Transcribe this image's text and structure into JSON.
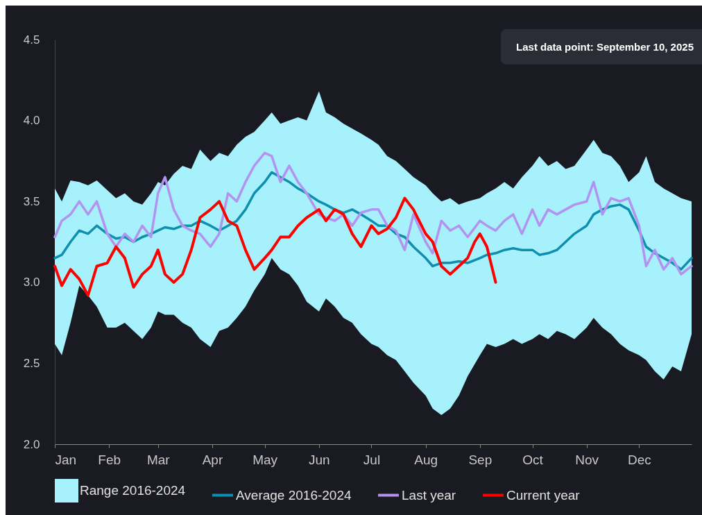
{
  "chart_data": {
    "type": "line",
    "annotations": [
      "Last data point: September 10, 2025"
    ],
    "x": [
      "--01-01",
      "--01-05",
      "--01-10",
      "--01-15",
      "--01-20",
      "--01-25",
      "--01-31",
      "--02-05",
      "--02-10",
      "--02-15",
      "--02-20",
      "--02-25",
      "--03-01",
      "--03-05",
      "--03-10",
      "--03-15",
      "--03-20",
      "--03-25",
      "--03-31",
      "--04-05",
      "--04-10",
      "--04-15",
      "--04-20",
      "--04-25",
      "--05-01",
      "--05-05",
      "--05-10",
      "--05-15",
      "--05-20",
      "--05-25",
      "--06-01",
      "--06-05",
      "--06-10",
      "--06-15",
      "--06-20",
      "--06-25",
      "--07-01",
      "--07-05",
      "--07-10",
      "--07-15",
      "--07-20",
      "--07-25",
      "--08-01",
      "--08-05",
      "--08-10",
      "--08-15",
      "--08-20",
      "--08-25",
      "--09-01",
      "--09-05",
      "--09-10",
      "--09-15",
      "--09-20",
      "--09-25",
      "--10-01",
      "--10-05",
      "--10-10",
      "--10-15",
      "--10-20",
      "--10-25",
      "--11-01",
      "--11-05",
      "--11-10",
      "--11-15",
      "--11-20",
      "--11-25",
      "--12-01",
      "--12-05",
      "--12-10",
      "--12-15",
      "--12-20",
      "--12-25",
      "--12-31"
    ],
    "series": [
      {
        "name": "Range 2016-2024",
        "type": "area",
        "color": "#a6f1fb",
        "lower": [
          2.62,
          2.55,
          2.75,
          2.98,
          2.92,
          2.85,
          2.72,
          2.72,
          2.75,
          2.7,
          2.65,
          2.72,
          2.82,
          2.8,
          2.8,
          2.75,
          2.72,
          2.65,
          2.6,
          2.7,
          2.72,
          2.78,
          2.85,
          2.95,
          3.05,
          3.15,
          3.08,
          3.05,
          2.98,
          2.88,
          2.82,
          2.9,
          2.85,
          2.78,
          2.75,
          2.68,
          2.62,
          2.6,
          2.55,
          2.52,
          2.45,
          2.38,
          2.3,
          2.22,
          2.18,
          2.22,
          2.3,
          2.42,
          2.55,
          2.62,
          2.6,
          2.62,
          2.65,
          2.62,
          2.65,
          2.68,
          2.65,
          2.7,
          2.68,
          2.65,
          2.72,
          2.78,
          2.72,
          2.68,
          2.62,
          2.58,
          2.55,
          2.52,
          2.45,
          2.4,
          2.48,
          2.45,
          2.68
        ],
        "upper": [
          3.58,
          3.5,
          3.63,
          3.62,
          3.6,
          3.63,
          3.57,
          3.52,
          3.55,
          3.5,
          3.48,
          3.55,
          3.62,
          3.6,
          3.67,
          3.72,
          3.7,
          3.82,
          3.75,
          3.8,
          3.78,
          3.85,
          3.9,
          3.93,
          4.0,
          4.05,
          3.98,
          4.0,
          4.02,
          4.0,
          4.18,
          4.05,
          4.02,
          3.98,
          3.95,
          3.92,
          3.88,
          3.85,
          3.78,
          3.75,
          3.7,
          3.65,
          3.6,
          3.55,
          3.5,
          3.52,
          3.48,
          3.5,
          3.52,
          3.55,
          3.58,
          3.62,
          3.58,
          3.65,
          3.72,
          3.78,
          3.72,
          3.75,
          3.7,
          3.72,
          3.82,
          3.88,
          3.8,
          3.78,
          3.72,
          3.62,
          3.68,
          3.78,
          3.62,
          3.58,
          3.55,
          3.52,
          3.5
        ],
        "values": [
          null,
          null,
          null,
          null,
          null,
          null,
          null,
          null,
          null,
          null,
          null,
          null,
          null,
          null,
          null,
          null,
          null,
          null,
          null,
          null,
          null,
          null,
          null,
          null,
          null,
          null,
          null,
          null,
          null,
          null,
          null,
          null,
          null,
          null,
          null,
          null,
          null,
          null,
          null,
          null,
          null,
          null,
          null,
          null,
          null,
          null,
          null,
          null,
          null,
          null,
          null,
          null,
          null,
          null,
          null,
          null,
          null,
          null,
          null,
          null,
          null,
          null,
          null,
          null,
          null,
          null,
          null,
          null,
          null,
          null,
          null,
          null,
          null
        ]
      },
      {
        "name": "Average 2016-2024",
        "color": "#0e8fb0",
        "values": [
          3.15,
          3.17,
          3.25,
          3.32,
          3.3,
          3.35,
          3.3,
          3.27,
          3.28,
          3.25,
          3.28,
          3.3,
          3.32,
          3.34,
          3.33,
          3.35,
          3.35,
          3.38,
          3.35,
          3.32,
          3.35,
          3.38,
          3.45,
          3.55,
          3.62,
          3.68,
          3.65,
          3.62,
          3.58,
          3.55,
          3.5,
          3.48,
          3.45,
          3.43,
          3.45,
          3.42,
          3.38,
          3.35,
          3.35,
          3.3,
          3.28,
          3.22,
          3.15,
          3.1,
          3.12,
          3.12,
          3.13,
          3.12,
          3.15,
          3.17,
          3.18,
          3.2,
          3.21,
          3.2,
          3.2,
          3.17,
          3.18,
          3.2,
          3.25,
          3.3,
          3.35,
          3.42,
          3.45,
          3.47,
          3.48,
          3.45,
          3.32,
          3.22,
          3.18,
          3.15,
          3.12,
          3.08,
          3.15
        ]
      },
      {
        "name": "Last year",
        "color": "#b294f0",
        "values": [
          3.28,
          3.38,
          3.42,
          3.5,
          3.42,
          3.5,
          3.3,
          3.22,
          3.3,
          3.25,
          3.35,
          3.28,
          3.55,
          3.65,
          3.45,
          3.35,
          3.32,
          3.3,
          3.22,
          3.3,
          3.55,
          3.5,
          3.62,
          3.72,
          3.8,
          3.78,
          3.62,
          3.72,
          3.62,
          3.55,
          3.42,
          3.4,
          3.38,
          3.42,
          3.35,
          3.43,
          3.45,
          3.45,
          3.35,
          3.32,
          3.2,
          3.42,
          3.25,
          3.18,
          3.38,
          3.32,
          3.35,
          3.28,
          3.38,
          3.35,
          3.32,
          3.38,
          3.42,
          3.3,
          3.45,
          3.35,
          3.45,
          3.42,
          3.45,
          3.48,
          3.5,
          3.62,
          3.42,
          3.52,
          3.5,
          3.52,
          3.35,
          3.1,
          3.2,
          3.08,
          3.15,
          3.05,
          3.1
        ]
      },
      {
        "name": "Current year",
        "color": "#ff0000",
        "x": [
          "--01-01",
          "--01-05",
          "--01-10",
          "--01-15",
          "--01-20",
          "--01-25",
          "--01-31",
          "--02-05",
          "--02-10",
          "--02-15",
          "--02-20",
          "--02-25",
          "--03-01",
          "--03-05",
          "--03-10",
          "--03-15",
          "--03-20",
          "--03-25",
          "--03-31",
          "--04-05",
          "--04-10",
          "--04-15",
          "--04-20",
          "--04-25",
          "--05-01",
          "--05-05",
          "--05-10",
          "--05-15",
          "--05-20",
          "--05-25",
          "--06-01",
          "--06-05",
          "--06-10",
          "--06-15",
          "--06-20",
          "--06-25",
          "--07-01",
          "--07-05",
          "--07-10",
          "--07-15",
          "--07-20",
          "--07-25",
          "--08-01",
          "--08-05",
          "--08-10",
          "--08-15",
          "--08-20",
          "--08-25",
          "--08-29",
          "--09-01",
          "--09-05",
          "--09-10"
        ],
        "values": [
          3.1,
          2.98,
          3.08,
          3.02,
          2.92,
          3.1,
          3.12,
          3.22,
          3.15,
          2.97,
          3.05,
          3.1,
          3.2,
          3.05,
          3.0,
          3.05,
          3.2,
          3.4,
          3.45,
          3.5,
          3.38,
          3.35,
          3.2,
          3.08,
          3.15,
          3.2,
          3.28,
          3.28,
          3.35,
          3.4,
          3.45,
          3.38,
          3.45,
          3.42,
          3.3,
          3.22,
          3.35,
          3.3,
          3.33,
          3.4,
          3.52,
          3.45,
          3.3,
          3.25,
          3.1,
          3.05,
          3.1,
          3.15,
          3.25,
          3.3,
          3.22,
          3.0
        ]
      }
    ],
    "xlim": [
      "--01-01",
      "--12-31"
    ],
    "xticks": [
      {
        "value": "--01-01",
        "label": "Jan"
      },
      {
        "value": "--02-01",
        "label": "Feb"
      },
      {
        "value": "--03-01",
        "label": "Mar"
      },
      {
        "value": "--04-01",
        "label": "Apr"
      },
      {
        "value": "--05-01",
        "label": "May"
      },
      {
        "value": "--06-01",
        "label": "Jun"
      },
      {
        "value": "--07-01",
        "label": "Jul"
      },
      {
        "value": "--08-01",
        "label": "Aug"
      },
      {
        "value": "--09-01",
        "label": "Sep"
      },
      {
        "value": "--10-01",
        "label": "Oct"
      },
      {
        "value": "--11-01",
        "label": "Nov"
      },
      {
        "value": "--12-01",
        "label": "Dec"
      }
    ],
    "ylim": [
      2.0,
      4.5
    ],
    "yticks": [
      {
        "value": 2,
        "label": "2.0"
      },
      {
        "value": 2.5,
        "label": "2.5"
      },
      {
        "value": 3,
        "label": "3.0"
      },
      {
        "value": 3.5,
        "label": "3.5"
      },
      {
        "value": 4,
        "label": "4.0"
      },
      {
        "value": 4.5,
        "label": "4.5"
      }
    ],
    "grid": false,
    "legend": "bottom",
    "marker": "none",
    "line_style": "solid"
  }
}
